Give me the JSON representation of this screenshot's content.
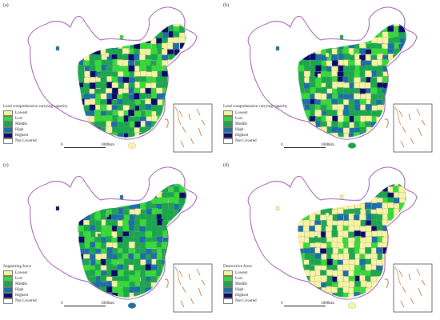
{
  "colors": {
    "lowest": "#f8f4a4",
    "low": "#33dd33",
    "middle": "#18a84c",
    "high": "#1a6fa8",
    "highest": "#0a0a6a",
    "not_covered": "#ffffff",
    "border": "#9a4fa8",
    "sea_islands": "#b5651d"
  },
  "panels": [
    {
      "label": "(a)",
      "legend_title": "Land comprehensive carrying capacity",
      "legend": [
        "Lowest",
        "Low",
        "Middle",
        "High",
        "Highest",
        "Not Covered"
      ],
      "scale_start": "0",
      "scale_end": "1000km"
    },
    {
      "label": "(b)",
      "legend_title": "Land comprehensive carrying capacity",
      "legend": [
        "Lowest",
        "Low",
        "Middle",
        "High",
        "Highest",
        "Not Covered"
      ],
      "scale_start": "0",
      "scale_end": "1000km"
    },
    {
      "label": "(c)",
      "legend_title": "Supporting force",
      "legend": [
        "Lowest",
        "Low",
        "Middle",
        "High",
        "Highest",
        "Not Covered"
      ],
      "scale_start": "0",
      "scale_end": "1000km"
    },
    {
      "label": "(d)",
      "legend_title": "Destructive force",
      "legend": [
        "Lowest",
        "Low",
        "Middle",
        "High",
        "Highest",
        "Not Covered"
      ],
      "scale_start": "0",
      "scale_end": "1000km"
    }
  ]
}
